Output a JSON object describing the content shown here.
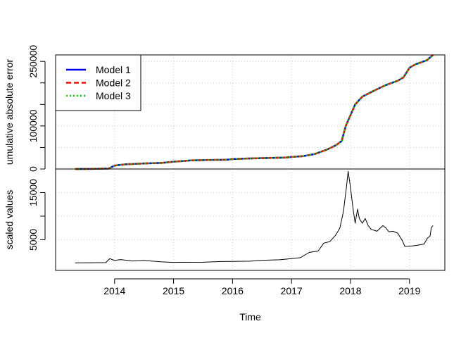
{
  "chart_data": [
    {
      "type": "line",
      "panel": "top",
      "xlabel": "",
      "ylabel": "umulative absolute error",
      "ylim": [
        0,
        265000
      ],
      "yticks": [
        0,
        100000,
        250000
      ],
      "ytick_labels": [
        "0",
        "100000",
        "250000"
      ],
      "minor_yticks": [
        50000,
        150000,
        200000
      ],
      "grid": true,
      "legend": {
        "position": "top-left",
        "entries": [
          {
            "label": "Model 1",
            "color": "#0000ff",
            "style": "solid"
          },
          {
            "label": "Model 2",
            "color": "#ff0000",
            "style": "dashed"
          },
          {
            "label": "Model 3",
            "color": "#00cc00",
            "style": "dotted"
          }
        ]
      },
      "x": [
        2013.33,
        2013.6,
        2013.9,
        2014.0,
        2014.2,
        2014.5,
        2014.8,
        2015.0,
        2015.3,
        2015.6,
        2015.9,
        2016.0,
        2016.3,
        2016.6,
        2016.9,
        2017.0,
        2017.2,
        2017.4,
        2017.6,
        2017.75,
        2017.85,
        2017.92,
        2018.0,
        2018.08,
        2018.2,
        2018.4,
        2018.6,
        2018.8,
        2018.9,
        2019.0,
        2019.1,
        2019.2,
        2019.3,
        2019.4
      ],
      "series": [
        {
          "name": "Model 1",
          "color": "#0000ff",
          "style": "solid",
          "values": [
            0,
            200,
            1000,
            8000,
            11000,
            13000,
            14000,
            17000,
            20000,
            21000,
            21500,
            23000,
            24500,
            25500,
            26500,
            28000,
            30000,
            35000,
            45000,
            55000,
            65000,
            100000,
            125000,
            150000,
            168000,
            182000,
            195000,
            205000,
            213000,
            235000,
            243000,
            248000,
            253000,
            265000
          ]
        },
        {
          "name": "Model 2",
          "color": "#ff0000",
          "style": "dashed",
          "values": [
            0,
            200,
            1000,
            8000,
            11000,
            13000,
            14000,
            17000,
            20000,
            21000,
            21500,
            23000,
            24500,
            25500,
            26500,
            28000,
            30000,
            35000,
            45000,
            55000,
            65000,
            100000,
            125000,
            150000,
            168000,
            182000,
            195000,
            205000,
            213000,
            235000,
            243000,
            248000,
            253000,
            265000
          ]
        },
        {
          "name": "Model 3",
          "color": "#00cc00",
          "style": "dotted",
          "values": [
            0,
            200,
            1000,
            8000,
            11000,
            13000,
            14000,
            17000,
            20000,
            21000,
            21500,
            23000,
            24500,
            25500,
            26500,
            28000,
            30000,
            35000,
            45000,
            55000,
            65000,
            100000,
            125000,
            150000,
            168000,
            182000,
            195000,
            205000,
            213000,
            235000,
            243000,
            248000,
            253000,
            265000
          ]
        }
      ]
    },
    {
      "type": "line",
      "panel": "bottom",
      "xlabel": "Time",
      "ylabel": "scaled values",
      "ylim": [
        -1500,
        20000
      ],
      "yticks": [
        5000,
        15000
      ],
      "ytick_labels": [
        "5000",
        "15000"
      ],
      "minor_yticks": [
        10000
      ],
      "xlim": [
        2013.0,
        2019.6
      ],
      "xticks": [
        2014,
        2015,
        2016,
        2017,
        2018,
        2019
      ],
      "xtick_labels": [
        "2014",
        "2015",
        "2016",
        "2017",
        "2018",
        "2019"
      ],
      "grid": true,
      "x": [
        2013.33,
        2013.6,
        2013.85,
        2013.92,
        2014.0,
        2014.1,
        2014.3,
        2014.5,
        2014.8,
        2015.0,
        2015.2,
        2015.5,
        2015.8,
        2016.0,
        2016.3,
        2016.5,
        2016.8,
        2017.0,
        2017.15,
        2017.3,
        2017.45,
        2017.55,
        2017.65,
        2017.75,
        2017.82,
        2017.88,
        2017.93,
        2017.96,
        2017.99,
        2018.02,
        2018.05,
        2018.08,
        2018.12,
        2018.15,
        2018.2,
        2018.25,
        2018.3,
        2018.35,
        2018.45,
        2018.55,
        2018.6,
        2018.65,
        2018.72,
        2018.8,
        2018.88,
        2018.92,
        2018.97,
        2019.05,
        2019.12,
        2019.2,
        2019.25,
        2019.3,
        2019.35,
        2019.37,
        2019.4
      ],
      "series": [
        {
          "name": "",
          "color": "#000000",
          "style": "solid",
          "values": [
            100,
            120,
            150,
            1000,
            600,
            800,
            500,
            600,
            300,
            200,
            220,
            230,
            380,
            400,
            450,
            650,
            750,
            1000,
            1200,
            2300,
            2600,
            4300,
            4600,
            6000,
            7500,
            11000,
            16000,
            19500,
            17000,
            14000,
            11000,
            8500,
            11500,
            9500,
            8500,
            9500,
            8000,
            7200,
            6800,
            8000,
            7500,
            6700,
            6800,
            6400,
            4800,
            3600,
            3600,
            3700,
            3800,
            4000,
            4100,
            5300,
            5800,
            7500,
            8000
          ]
        }
      ]
    }
  ]
}
